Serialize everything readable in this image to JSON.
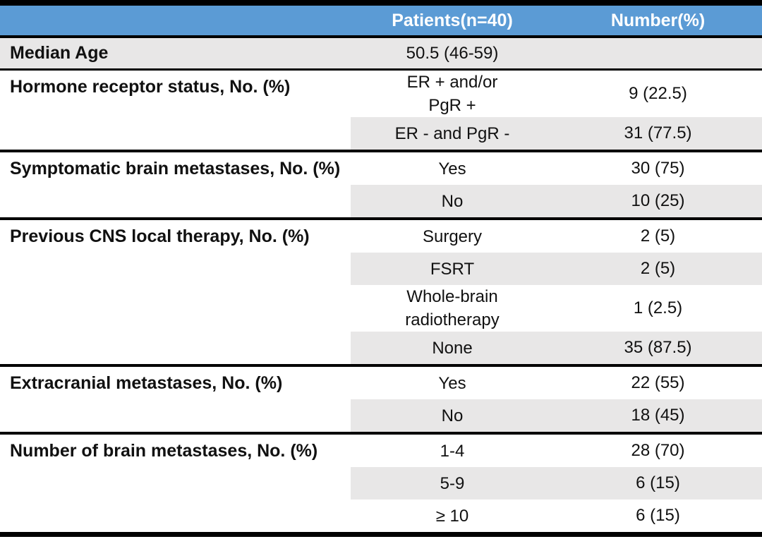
{
  "table": {
    "colors": {
      "header_bg": "#5B9BD5",
      "header_text": "#FFFFFF",
      "shade_bg": "#E8E7E7",
      "rule": "#000000"
    },
    "header": {
      "col1": "",
      "col2": "Patients(n=40)",
      "col3": "Number(%)"
    },
    "median_age": {
      "label": "Median Age",
      "patients": "50.5 (46-59)",
      "number": ""
    },
    "groups": [
      {
        "label": "Hormone receptor status, No. (%)",
        "rows": [
          {
            "patients": "ER + and/or\nPgR +",
            "number": "9 (22.5)",
            "shaded": false
          },
          {
            "patients": "ER - and PgR -",
            "number": "31 (77.5)",
            "shaded": true
          }
        ]
      },
      {
        "label": "Symptomatic brain metastases, No. (%)",
        "rows": [
          {
            "patients": "Yes",
            "number": "30 (75)",
            "shaded": false
          },
          {
            "patients": "No",
            "number": "10 (25)",
            "shaded": true
          }
        ]
      },
      {
        "label": "Previous CNS local therapy, No. (%)",
        "rows": [
          {
            "patients": "Surgery",
            "number": "2 (5)",
            "shaded": false
          },
          {
            "patients": "FSRT",
            "number": "2 (5)",
            "shaded": true
          },
          {
            "patients": "Whole-brain\nradiotherapy",
            "number": "1 (2.5)",
            "shaded": false
          },
          {
            "patients": "None",
            "number": "35 (87.5)",
            "shaded": true
          }
        ]
      },
      {
        "label": "Extracranial metastases, No. (%)",
        "rows": [
          {
            "patients": "Yes",
            "number": "22 (55)",
            "shaded": false
          },
          {
            "patients": "No",
            "number": "18 (45)",
            "shaded": true
          }
        ]
      },
      {
        "label": "Number of brain metastases, No. (%)",
        "rows": [
          {
            "patients": "1-4",
            "number": "28 (70)",
            "shaded": false
          },
          {
            "patients": "5-9",
            "number": "6 (15)",
            "shaded": true
          },
          {
            "patients": "≥ 10",
            "number": "6 (15)",
            "shaded": false
          }
        ]
      }
    ]
  }
}
